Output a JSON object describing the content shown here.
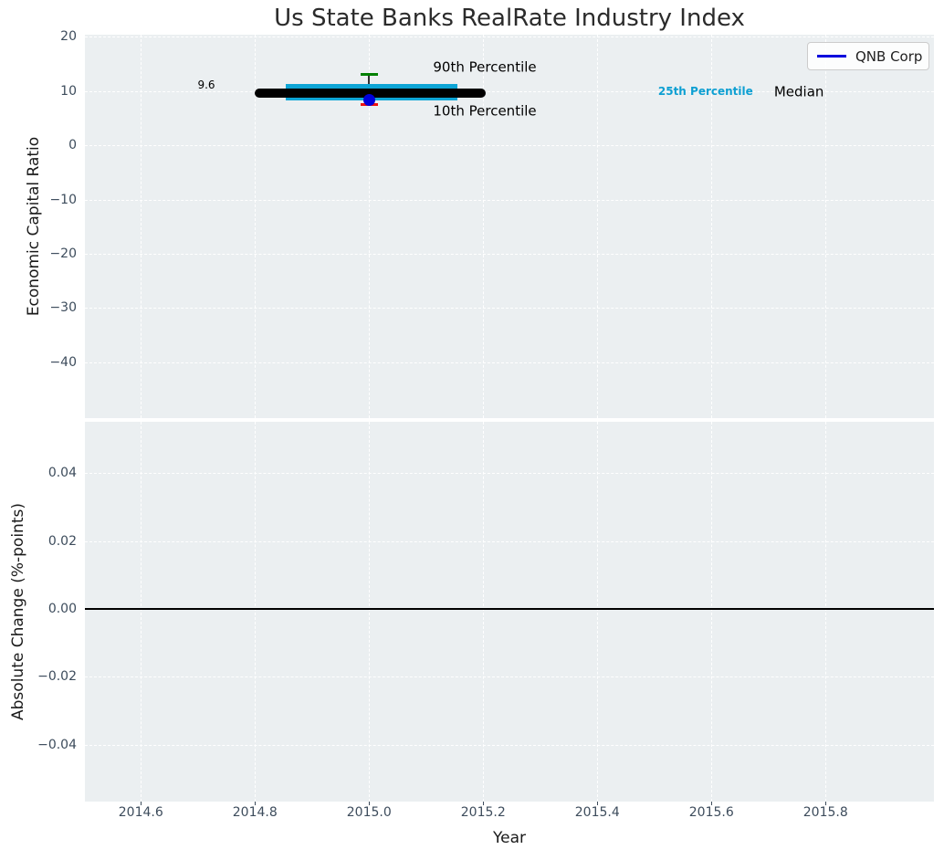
{
  "figure": {
    "title": "Us State Banks RealRate Industry Index"
  },
  "chart_data": [
    {
      "type": "boxplot",
      "title": "Us State Banks RealRate Industry Index",
      "ylabel": "Economic Capital Ratio",
      "xlim": [
        2014.502,
        2015.99
      ],
      "ylim": [
        -50.3,
        20.4
      ],
      "background": "#ebeff1",
      "grid": {
        "on": true,
        "style": "dashed",
        "color": "#ffffff"
      },
      "xticks": {
        "values": [
          2014.6,
          2014.8,
          2015.0,
          2015.2,
          2015.4,
          2015.6,
          2015.8
        ],
        "labels": [
          "2014.6",
          "2014.8",
          "2015.0",
          "2015.2",
          "2015.4",
          "2015.6",
          "2015.8"
        ]
      },
      "yticks": {
        "values": [
          20,
          10,
          0,
          -10,
          -20,
          -30,
          -40
        ],
        "labels": [
          "20",
          "10",
          "0",
          "−10",
          "−20",
          "−30",
          "−40"
        ]
      },
      "box": {
        "x": 2015.0,
        "median": {
          "value": 9.6,
          "label": "9.6",
          "span": [
            2014.8,
            2015.205
          ],
          "color": "#000000"
        },
        "iqr": {
          "p25": 8.35,
          "p75": 11.3,
          "span": [
            2014.854,
            2015.155
          ],
          "color": "#0da5d6"
        },
        "p90": {
          "value": 13.1,
          "color": "#008000"
        },
        "p10": {
          "value": 7.55,
          "color": "#ee1111"
        },
        "cap_half_width": 0.0152
      },
      "series": [
        {
          "name": "QNB Corp",
          "color": "#0000dd",
          "points": [
            {
              "x": 2015.0,
              "y": 8.3
            }
          ]
        }
      ],
      "legend": {
        "position": "upper right",
        "entries": [
          {
            "label": "QNB Corp",
            "color": "#0000dd"
          }
        ]
      },
      "annotations": [
        {
          "text": "90th Percentile",
          "fx": 0.471,
          "fy": 0.086,
          "color": "#000000",
          "size": 15,
          "bold": false
        },
        {
          "text": "10th Percentile",
          "fx": 0.471,
          "fy": 0.2,
          "color": "#000000",
          "size": 15,
          "bold": false
        },
        {
          "text": "25th Percentile",
          "fx": 0.731,
          "fy": 0.148,
          "color": "#0d9fd2",
          "size": 12,
          "bold": true
        },
        {
          "text": "Median",
          "fx": 0.841,
          "fy": 0.15,
          "color": "#000000",
          "size": 15,
          "bold": false
        },
        {
          "text": "9.6",
          "fx": 0.143,
          "fy": 0.131,
          "color": "#000000",
          "size": 12,
          "bold": false
        }
      ]
    },
    {
      "type": "line",
      "ylabel": "Absolute Change (%-points)",
      "xlabel": "Year",
      "xlim": [
        2014.502,
        2015.99
      ],
      "ylim": [
        -0.0568,
        0.0552
      ],
      "background": "#ebeff1",
      "grid": {
        "on": true,
        "style": "dashed",
        "color": "#ffffff"
      },
      "xticks": {
        "values": [
          2014.6,
          2014.8,
          2015.0,
          2015.2,
          2015.4,
          2015.6,
          2015.8
        ],
        "labels": [
          "2014.6",
          "2014.8",
          "2015.0",
          "2015.2",
          "2015.4",
          "2015.6",
          "2015.8"
        ]
      },
      "yticks": {
        "values": [
          0.04,
          0.02,
          0.0,
          -0.02,
          -0.04
        ],
        "labels": [
          "0.04",
          "0.02",
          "0.00",
          "−0.02",
          "−0.04"
        ]
      },
      "zero_line": {
        "value": 0.0,
        "color": "#000000"
      },
      "series": []
    }
  ]
}
